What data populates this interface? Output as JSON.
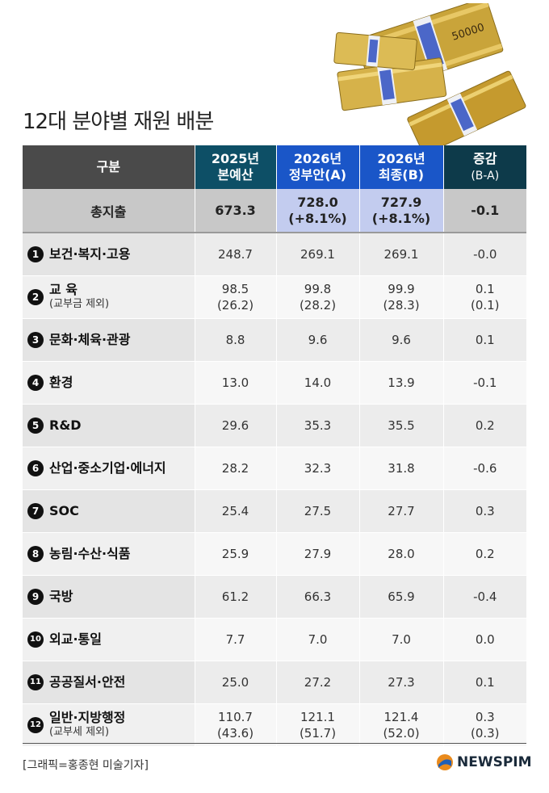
{
  "title": "12대 분야별 재원 배분",
  "header": {
    "label": "구분",
    "col_2025_line1": "2025년",
    "col_2025_line2": "본예산",
    "col_gov_line1": "2026년",
    "col_gov_line2": "정부안(A)",
    "col_final_line1": "2026년",
    "col_final_line2": "최종(B)",
    "col_diff_line1": "증감",
    "col_diff_line2": "(B-A)"
  },
  "total": {
    "label": "총지출",
    "v2025": "673.3",
    "gov": "728.0",
    "gov_pct": "(+8.1%)",
    "final": "727.9",
    "final_pct": "(+8.1%)",
    "diff": "-0.1"
  },
  "rows": [
    {
      "no": "1",
      "label": "보건·복지·고용",
      "sub": "",
      "v2025": "248.7",
      "v2025b": "",
      "gov": "269.1",
      "govb": "",
      "final": "269.1",
      "finalb": "",
      "diff": "-0.0",
      "diffb": ""
    },
    {
      "no": "2",
      "label": "교 육",
      "sub": "(교부금 제외)",
      "v2025": "98.5",
      "v2025b": "(26.2)",
      "gov": "99.8",
      "govb": "(28.2)",
      "final": "99.9",
      "finalb": "(28.3)",
      "diff": "0.1",
      "diffb": "(0.1)"
    },
    {
      "no": "3",
      "label": "문화·체육·관광",
      "sub": "",
      "v2025": "8.8",
      "v2025b": "",
      "gov": "9.6",
      "govb": "",
      "final": "9.6",
      "finalb": "",
      "diff": "0.1",
      "diffb": ""
    },
    {
      "no": "4",
      "label": "환경",
      "sub": "",
      "v2025": "13.0",
      "v2025b": "",
      "gov": "14.0",
      "govb": "",
      "final": "13.9",
      "finalb": "",
      "diff": "-0.1",
      "diffb": ""
    },
    {
      "no": "5",
      "label": "R&D",
      "sub": "",
      "v2025": "29.6",
      "v2025b": "",
      "gov": "35.3",
      "govb": "",
      "final": "35.5",
      "finalb": "",
      "diff": "0.2",
      "diffb": ""
    },
    {
      "no": "6",
      "label": "산업·중소기업·에너지",
      "sub": "",
      "v2025": "28.2",
      "v2025b": "",
      "gov": "32.3",
      "govb": "",
      "final": "31.8",
      "finalb": "",
      "diff": "-0.6",
      "diffb": ""
    },
    {
      "no": "7",
      "label": "SOC",
      "sub": "",
      "v2025": "25.4",
      "v2025b": "",
      "gov": "27.5",
      "govb": "",
      "final": "27.7",
      "finalb": "",
      "diff": "0.3",
      "diffb": ""
    },
    {
      "no": "8",
      "label": "농림·수산·식품",
      "sub": "",
      "v2025": "25.9",
      "v2025b": "",
      "gov": "27.9",
      "govb": "",
      "final": "28.0",
      "finalb": "",
      "diff": "0.2",
      "diffb": ""
    },
    {
      "no": "9",
      "label": "국방",
      "sub": "",
      "v2025": "61.2",
      "v2025b": "",
      "gov": "66.3",
      "govb": "",
      "final": "65.9",
      "finalb": "",
      "diff": "-0.4",
      "diffb": ""
    },
    {
      "no": "10",
      "label": "외교·통일",
      "sub": "",
      "v2025": "7.7",
      "v2025b": "",
      "gov": "7.0",
      "govb": "",
      "final": "7.0",
      "finalb": "",
      "diff": "0.0",
      "diffb": ""
    },
    {
      "no": "11",
      "label": "공공질서·안전",
      "sub": "",
      "v2025": "25.0",
      "v2025b": "",
      "gov": "27.2",
      "govb": "",
      "final": "27.3",
      "finalb": "",
      "diff": "0.1",
      "diffb": ""
    },
    {
      "no": "12",
      "label": "일반·지방행정",
      "sub": "(교부세 제외)",
      "v2025": "110.7",
      "v2025b": "(43.6)",
      "gov": "121.1",
      "govb": "(51.7)",
      "final": "121.4",
      "finalb": "(52.0)",
      "diff": "0.3",
      "diffb": "(0.3)"
    }
  ],
  "credit": "[그래픽=홍종현 미술기자]",
  "logo": "NEWSPIM",
  "banknote_label": "50000",
  "colors": {
    "header_dark": "#4a4a4a",
    "header_teal": "#0d4f66",
    "header_blue": "#1a56c8",
    "highlight": "#c3ccef"
  }
}
